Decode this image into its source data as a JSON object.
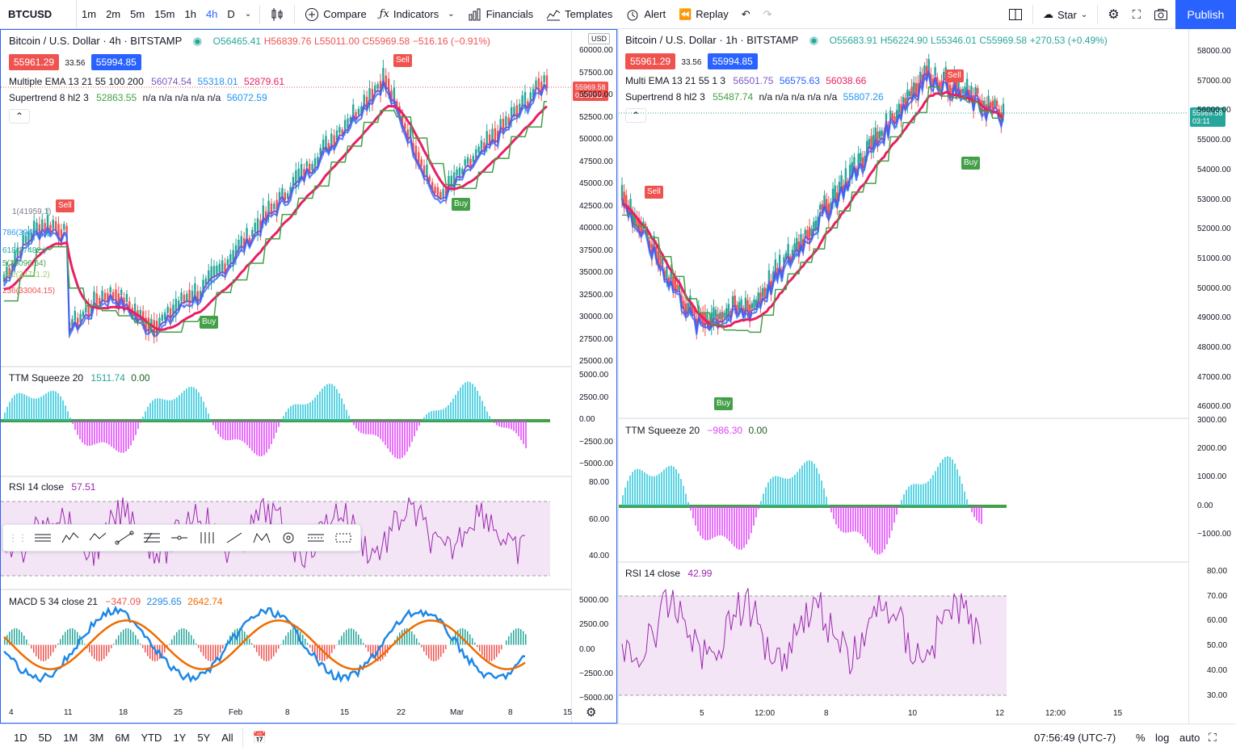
{
  "toolbar": {
    "symbol": "BTCUSD",
    "intervals": [
      "1m",
      "2m",
      "5m",
      "15m",
      "1h",
      "4h",
      "D"
    ],
    "active_interval": "4h",
    "compare": "Compare",
    "indicators": "Indicators",
    "financials": "Financials",
    "templates": "Templates",
    "alert": "Alert",
    "replay": "Replay",
    "star": "Star",
    "publish": "Publish"
  },
  "left": {
    "title": "Bitcoin / U.S. Dollar · 4h · BITSTAMP",
    "ohlc": {
      "o": "O56465.41",
      "h": "H56839.76",
      "l": "L55011.00",
      "c": "C55969.58",
      "chg": "−516.16 (−0.91%)"
    },
    "bid": "55961.29",
    "spread": "33.56",
    "ask": "55994.85",
    "ema_label": "Multiple EMA 13 21 55 100 200",
    "ema_vals": [
      "56074.54",
      "55318.01",
      "52879.61"
    ],
    "st_label": "Supertrend 8 hl2 3",
    "st_vals": [
      "52863.55",
      "n/a n/a n/a n/a n/a",
      "56072.59"
    ],
    "currency": "USD",
    "price_axis": [
      "60000.00",
      "57500.00",
      "55000.00",
      "52500.00",
      "50000.00",
      "47500.00",
      "45000.00",
      "42500.00",
      "40000.00",
      "37500.00",
      "35000.00",
      "32500.00",
      "30000.00",
      "27500.00",
      "25000.00"
    ],
    "last_price": "55969.58",
    "countdown": "01:03:11",
    "ttm_label": "TTM Squeeze 20",
    "ttm_vals": [
      "1511.74",
      "0.00"
    ],
    "ttm_axis": [
      "5000.00",
      "2500.00",
      "0.00",
      "−2500.00",
      "−5000.00"
    ],
    "rsi_label": "RSI 14 close",
    "rsi_val": "57.51",
    "rsi_axis": [
      "80.00",
      "60.00",
      "40.00"
    ],
    "macd_label": "MACD 5 34 close 21",
    "macd_vals": [
      "−347.09",
      "2295.65",
      "2642.74"
    ],
    "macd_axis": [
      "5000.00",
      "2500.00",
      "0.00",
      "−2500.00",
      "−5000.00"
    ],
    "x_axis": [
      "4",
      "11",
      "18",
      "25",
      "Feb",
      "8",
      "15",
      "22",
      "Mar",
      "8",
      "15"
    ],
    "fib": [
      "1(41959.1)",
      "786(39451.4)",
      "618(37482.)",
      "5(36096.64)",
      "382(34711.2)",
      "236(33004.15)"
    ],
    "signals": {
      "sell": "Sell",
      "buy": "Buy"
    }
  },
  "right": {
    "title": "Bitcoin / U.S. Dollar · 1h · BITSTAMP",
    "ohlc": {
      "o": "O55683.91",
      "h": "H56224.90",
      "l": "L55346.01",
      "c": "C55969.58",
      "chg": "+270.53 (+0.49%)"
    },
    "bid": "55961.29",
    "spread": "33.56",
    "ask": "55994.85",
    "ema_label": "Multi EMA 13 21 55 1 3",
    "ema_vals": [
      "56501.75",
      "56575.63",
      "56038.66"
    ],
    "st_label": "Supertrend 8 hl2 3",
    "st_vals": [
      "55487.74",
      "n/a n/a n/a n/a n/a",
      "55807.26"
    ],
    "price_axis": [
      "58000.00",
      "57000.00",
      "56000.00",
      "55000.00",
      "54000.00",
      "53000.00",
      "52000.00",
      "51000.00",
      "50000.00",
      "49000.00",
      "48000.00",
      "47000.00",
      "46000.00"
    ],
    "last_price": "55969.58",
    "countdown": "03:11",
    "ttm_label": "TTM Squeeze 20",
    "ttm_vals": [
      "−986.30",
      "0.00"
    ],
    "ttm_axis": [
      "3000.00",
      "2000.00",
      "1000.00",
      "0.00",
      "−1000.00"
    ],
    "rsi_label": "RSI 14 close",
    "rsi_val": "42.99",
    "rsi_axis": [
      "80.00",
      "70.00",
      "60.00",
      "50.00",
      "40.00",
      "30.00"
    ],
    "x_axis": [
      "5",
      "12:00",
      "8",
      "10",
      "12",
      "12:00",
      "15"
    ],
    "signals": {
      "sell": "Sell",
      "buy": "Buy"
    }
  },
  "bottom": {
    "ranges": [
      "1D",
      "5D",
      "1M",
      "3M",
      "6M",
      "YTD",
      "1Y",
      "5Y",
      "All"
    ],
    "time": "07:56:49 (UTC-7)",
    "pct": "%",
    "log": "log",
    "auto": "auto"
  },
  "colors": {
    "accent": "#2962ff",
    "bear": "#ef5350",
    "bull": "#26a69a",
    "ema1": "#7e57c2",
    "ema2": "#2196f3",
    "ema3": "#e91e63",
    "st_up": "#43a047",
    "st_dn": "#ef5350",
    "ttm_pos": "#26c6da",
    "ttm_neg": "#e040fb",
    "rsi": "#9c27b0",
    "macd": "#1e88e5",
    "signal": "#ef6c00"
  }
}
